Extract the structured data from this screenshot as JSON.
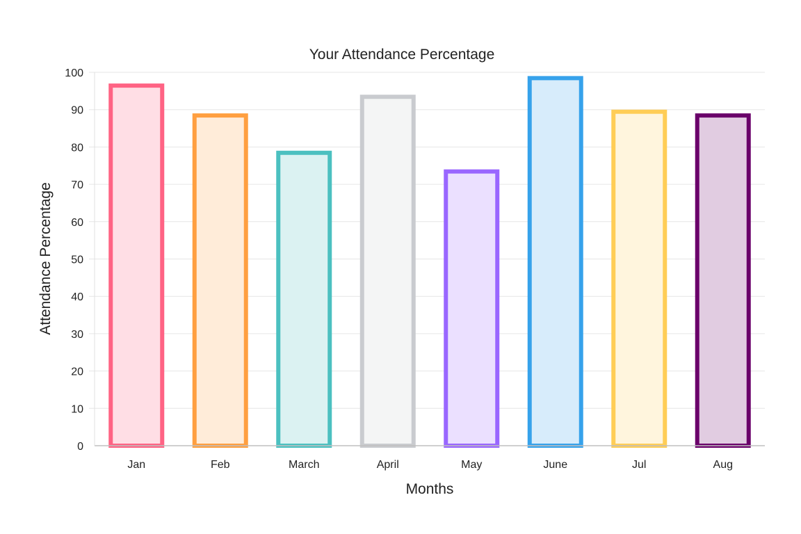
{
  "chart_data": {
    "type": "bar",
    "title": "Your Attendance Percentage",
    "xlabel": "Months",
    "ylabel": "Attendance Percentage",
    "categories": [
      "Jan",
      "Feb",
      "March",
      "April",
      "May",
      "June",
      "Jul",
      "Aug"
    ],
    "values": [
      97,
      89,
      79,
      94,
      74,
      99,
      90,
      89
    ],
    "ylim": [
      0,
      100
    ],
    "yticks": [
      "0",
      "10",
      "20",
      "30",
      "40",
      "50",
      "60",
      "70",
      "80",
      "90",
      "100"
    ],
    "grid": true,
    "legend": "none",
    "colors": {
      "border": [
        "#ff6384",
        "#ff9f40",
        "#4bc0c0",
        "#c9cbcf",
        "#9966ff",
        "#36a2eb",
        "#ffcd56",
        "#6a006a"
      ],
      "fill": [
        "#ffdee5",
        "#ffecd9",
        "#dbf2f2",
        "#f4f5f5",
        "#ebe0ff",
        "#d7ecfb",
        "#fff5dd",
        "#e1cce1"
      ]
    }
  }
}
